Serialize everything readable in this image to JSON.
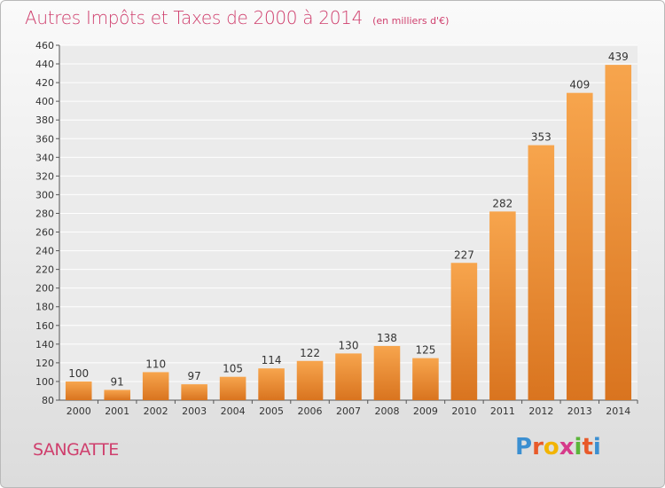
{
  "header": {
    "title": "Autres Impôts et Taxes de 2000 à 2014",
    "unit": "(en milliers d'€)"
  },
  "footer": {
    "commune": "SANGATTE",
    "logo_text": "Proxiti"
  },
  "colors": {
    "title": "#cf3f6d",
    "bar_light": "#f7a54d",
    "bar_dark": "#d9741f",
    "logo": [
      "#3b8fd1",
      "#e85a2a",
      "#f2b400",
      "#d63a8a",
      "#5bb53a",
      "#e85a2a",
      "#3b8fd1"
    ]
  },
  "chart_data": {
    "type": "bar",
    "categories": [
      "2000",
      "2001",
      "2002",
      "2003",
      "2004",
      "2005",
      "2006",
      "2007",
      "2008",
      "2009",
      "2010",
      "2011",
      "2012",
      "2013",
      "2014"
    ],
    "values": [
      100,
      91,
      110,
      97,
      105,
      114,
      122,
      130,
      138,
      125,
      227,
      282,
      353,
      409,
      439
    ],
    "title": "Autres Impôts et Taxes de 2000 à 2014",
    "subtitle": "(en milliers d'€)",
    "xlabel": "",
    "ylabel": "",
    "ylim": [
      80,
      460
    ],
    "yticks": [
      80,
      100,
      120,
      140,
      160,
      180,
      200,
      220,
      240,
      260,
      280,
      300,
      320,
      340,
      360,
      380,
      400,
      420,
      440,
      460
    ],
    "grid": true,
    "legend": "none"
  }
}
